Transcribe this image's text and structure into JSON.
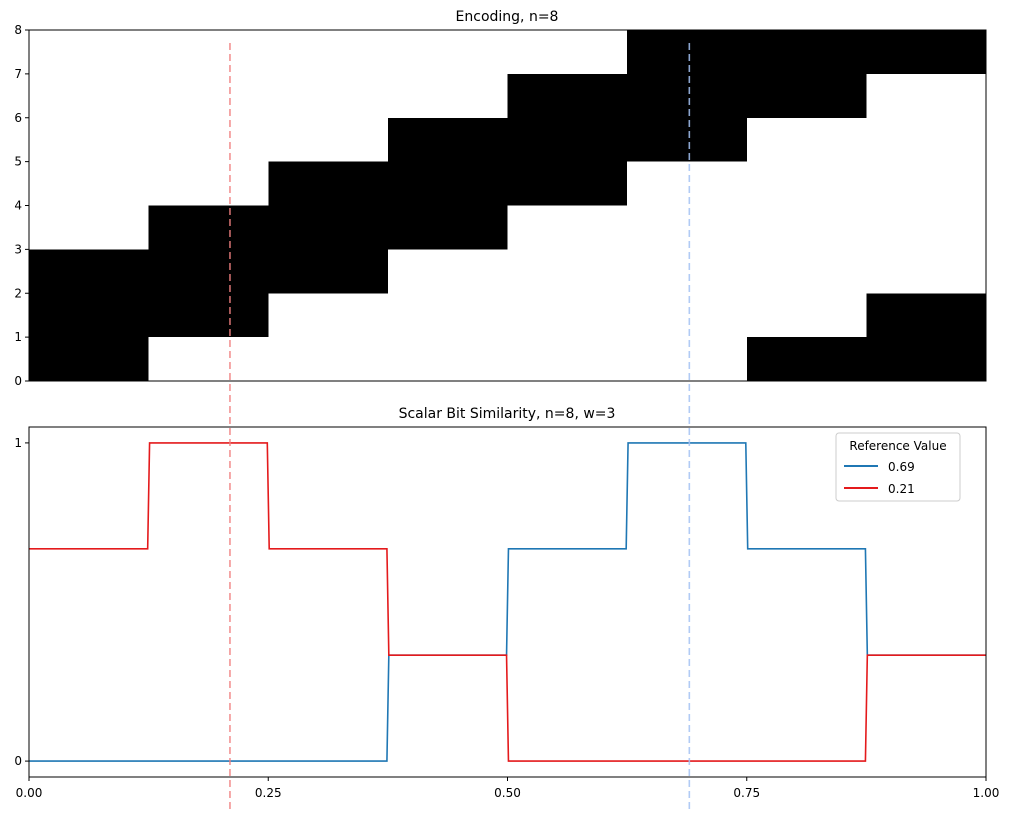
{
  "chart_data": [
    {
      "type": "heatmap",
      "title": "Encoding, n=8",
      "xlim": [
        0,
        1
      ],
      "ylim": [
        0,
        8
      ],
      "yticks": [
        "0",
        "1",
        "2",
        "3",
        "4",
        "5",
        "6",
        "7",
        "8"
      ],
      "grid": false,
      "colors": {
        "on": "#000000",
        "off": "#ffffff"
      },
      "columns_x0": [
        0.0,
        0.125,
        0.25,
        0.375,
        0.5,
        0.625,
        0.75,
        0.875
      ],
      "column_width": 0.125,
      "active_bits": [
        [
          0,
          1,
          2
        ],
        [
          1,
          2,
          3
        ],
        [
          2,
          3,
          4
        ],
        [
          3,
          4,
          5
        ],
        [
          4,
          5,
          6
        ],
        [
          5,
          6,
          7
        ],
        [
          6,
          7,
          0
        ],
        [
          7,
          0,
          1
        ]
      ],
      "reference_lines": [
        {
          "x": 0.21,
          "color": "#f08080"
        },
        {
          "x": 0.69,
          "color": "#a4c2f4"
        }
      ]
    },
    {
      "type": "line",
      "title": "Scalar Bit Similarity, n=8, w=3",
      "xlim": [
        0,
        1
      ],
      "xticks": [
        "0.00",
        "0.25",
        "0.50",
        "0.75",
        "1.00"
      ],
      "yticks": [
        "0",
        "1"
      ],
      "ylim": [
        -0.05,
        1.05
      ],
      "grid": false,
      "legend": {
        "title": "Reference Value",
        "placement": "top-right"
      },
      "series": [
        {
          "name": "0.69",
          "color": "#1f77b4",
          "x": [
            0,
            0.374,
            0.376,
            0.499,
            0.501,
            0.624,
            0.626,
            0.749,
            0.751,
            0.874,
            0.876,
            1.0
          ],
          "y": [
            0,
            0,
            0.333,
            0.333,
            0.667,
            0.667,
            1,
            1,
            0.667,
            0.667,
            0.333,
            0.333
          ]
        },
        {
          "name": "0.21",
          "color": "#e41a1c",
          "x": [
            0,
            0.124,
            0.126,
            0.249,
            0.251,
            0.374,
            0.376,
            0.499,
            0.501,
            0.874,
            0.876,
            1.0
          ],
          "y": [
            0.667,
            0.667,
            1,
            1,
            0.667,
            0.667,
            0.333,
            0.333,
            0,
            0,
            0.333,
            0.333
          ]
        }
      ],
      "reference_lines": [
        {
          "x": 0.21,
          "color": "#f08080"
        },
        {
          "x": 0.69,
          "color": "#a4c2f4"
        }
      ]
    }
  ]
}
